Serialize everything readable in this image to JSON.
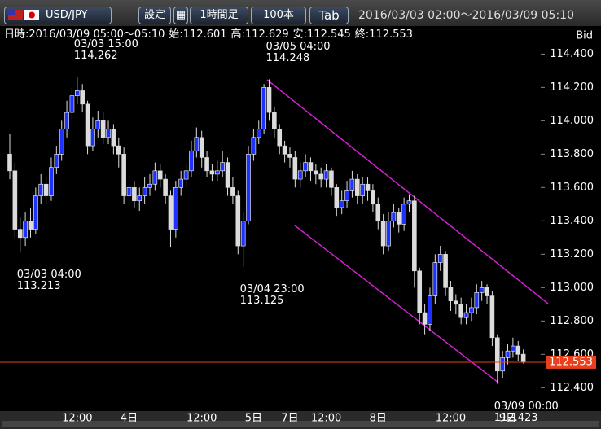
{
  "header": {
    "pair": "USD/JPY",
    "buttons": [
      "設定",
      "1時間足",
      "100本",
      "Tab"
    ],
    "range": "2016/03/03 02:00～2016/03/09 05:10"
  },
  "info": [
    "日時:2016/03/09 05:00～05:10",
    "始:112.601",
    "高:112.629",
    "安:112.545",
    "終:112.553"
  ],
  "price_side": "Bid",
  "chart_data": {
    "type": "candlestick",
    "up_color": "#1e32ff",
    "down_color": "#dcdcdc",
    "last_price_color": "#e8401c",
    "open": [
      113.8,
      113.7,
      113.35,
      113.3,
      113.4,
      113.35,
      113.55,
      113.62,
      113.55,
      113.72,
      113.8,
      113.95,
      114.05,
      114.15,
      114.18,
      114.1,
      113.85,
      113.95,
      114.0,
      113.9,
      113.95,
      113.85,
      113.8,
      113.55,
      113.6,
      113.52,
      113.55,
      113.6,
      113.62,
      113.7,
      113.65,
      113.55,
      113.35,
      113.6,
      113.65,
      113.7,
      113.82,
      113.9,
      113.78,
      113.7,
      113.68,
      113.7,
      113.75,
      113.6,
      113.55,
      113.25,
      113.4,
      113.8,
      113.9,
      113.95,
      114.2,
      114.05,
      113.95,
      113.85,
      113.8,
      113.78,
      113.65,
      113.7,
      113.75,
      113.7,
      113.68,
      113.65,
      113.7,
      113.6,
      113.48,
      113.52,
      113.58,
      113.65,
      113.55,
      113.62,
      113.58,
      113.5,
      113.4,
      113.25,
      113.4,
      113.45,
      113.38,
      113.5,
      113.52,
      113.1,
      112.85,
      112.78,
      112.95,
      113.15,
      113.2,
      113.0,
      112.92,
      112.9,
      112.82,
      112.85,
      112.88,
      112.97,
      113.0,
      112.95,
      112.7,
      112.5,
      112.58,
      112.62,
      112.65,
      112.601
    ],
    "high": [
      113.92,
      113.75,
      113.42,
      113.45,
      113.48,
      113.6,
      113.68,
      113.66,
      113.78,
      113.85,
      114.0,
      114.12,
      114.2,
      114.262,
      114.22,
      114.12,
      114.02,
      114.06,
      114.05,
      114.0,
      113.98,
      113.9,
      113.84,
      113.66,
      113.64,
      113.6,
      113.66,
      113.68,
      113.75,
      113.74,
      113.68,
      113.58,
      113.64,
      113.7,
      113.75,
      113.88,
      113.96,
      113.94,
      113.82,
      113.74,
      113.76,
      113.82,
      113.78,
      113.66,
      113.58,
      113.45,
      113.85,
      113.95,
      114.0,
      114.22,
      114.248,
      114.08,
      113.98,
      113.88,
      113.84,
      113.82,
      113.75,
      113.8,
      113.78,
      113.74,
      113.72,
      113.74,
      113.72,
      113.62,
      113.58,
      113.64,
      113.7,
      113.68,
      113.66,
      113.66,
      113.62,
      113.54,
      113.44,
      113.45,
      113.5,
      113.48,
      113.54,
      113.56,
      113.55,
      113.12,
      112.9,
      113.0,
      113.2,
      113.25,
      113.22,
      113.04,
      112.96,
      112.94,
      112.9,
      112.94,
      113.02,
      113.04,
      113.02,
      112.98,
      112.72,
      112.62,
      112.66,
      112.7,
      112.68,
      112.629
    ],
    "low": [
      113.65,
      113.3,
      113.213,
      113.25,
      113.3,
      113.32,
      113.5,
      113.5,
      113.52,
      113.68,
      113.76,
      113.9,
      114.0,
      114.1,
      114.05,
      113.8,
      113.82,
      113.9,
      113.86,
      113.86,
      113.8,
      113.72,
      113.5,
      113.3,
      113.48,
      113.46,
      113.5,
      113.55,
      113.58,
      113.6,
      113.5,
      113.24,
      113.3,
      113.55,
      113.6,
      113.66,
      113.78,
      113.72,
      113.66,
      113.64,
      113.64,
      113.66,
      113.55,
      113.5,
      113.2,
      113.125,
      113.38,
      113.76,
      113.86,
      113.92,
      114.0,
      113.9,
      113.8,
      113.75,
      113.72,
      113.6,
      113.6,
      113.66,
      113.64,
      113.62,
      113.6,
      113.6,
      113.55,
      113.43,
      113.44,
      113.48,
      113.54,
      113.5,
      113.5,
      113.52,
      113.45,
      113.35,
      113.2,
      113.22,
      113.36,
      113.33,
      113.34,
      113.45,
      113.0,
      112.78,
      112.72,
      112.74,
      112.9,
      113.1,
      112.95,
      112.86,
      112.84,
      112.78,
      112.78,
      112.8,
      112.84,
      112.92,
      112.9,
      112.65,
      112.423,
      112.46,
      112.54,
      112.58,
      112.56,
      112.545
    ],
    "close": [
      113.7,
      113.35,
      113.3,
      113.4,
      113.35,
      113.55,
      113.62,
      113.55,
      113.72,
      113.8,
      113.95,
      114.05,
      114.15,
      114.18,
      114.1,
      113.85,
      113.95,
      114.0,
      113.9,
      113.95,
      113.85,
      113.8,
      113.55,
      113.6,
      113.52,
      113.55,
      113.6,
      113.62,
      113.7,
      113.65,
      113.55,
      113.35,
      113.6,
      113.65,
      113.7,
      113.82,
      113.9,
      113.78,
      113.7,
      113.68,
      113.7,
      113.75,
      113.6,
      113.55,
      113.25,
      113.4,
      113.8,
      113.9,
      113.95,
      114.2,
      114.05,
      113.95,
      113.85,
      113.8,
      113.78,
      113.65,
      113.7,
      113.75,
      113.7,
      113.68,
      113.65,
      113.7,
      113.6,
      113.48,
      113.52,
      113.58,
      113.65,
      113.55,
      113.62,
      113.58,
      113.5,
      113.4,
      113.25,
      113.4,
      113.45,
      113.38,
      113.5,
      113.52,
      113.1,
      112.85,
      112.78,
      112.95,
      113.15,
      113.2,
      113.0,
      112.92,
      112.9,
      112.82,
      112.85,
      112.88,
      112.97,
      113.0,
      112.95,
      112.7,
      112.5,
      112.58,
      112.62,
      112.65,
      112.6,
      112.553
    ],
    "ylim": [
      112.26,
      114.47
    ],
    "yticks": [
      {
        "value": 112.4,
        "label": "112.400"
      },
      {
        "value": 112.6,
        "label": "112.600"
      },
      {
        "value": 112.8,
        "label": "112.800"
      },
      {
        "value": 113.0,
        "label": "113.000"
      },
      {
        "value": 113.2,
        "label": "113.200"
      },
      {
        "value": 113.4,
        "label": "113.400"
      },
      {
        "value": 113.6,
        "label": "113.600"
      },
      {
        "value": 113.8,
        "label": "113.800"
      },
      {
        "value": 114.0,
        "label": "114.000"
      },
      {
        "value": 114.2,
        "label": "114.200"
      },
      {
        "value": 114.4,
        "label": "114.400"
      }
    ],
    "xticks": [
      {
        "value": 13,
        "label": "12:00"
      },
      {
        "value": 23,
        "label": "4日"
      },
      {
        "value": 37,
        "label": "12:00"
      },
      {
        "value": 47,
        "label": "5日"
      },
      {
        "value": 54,
        "label": "7日"
      },
      {
        "value": 61,
        "label": "12:00"
      },
      {
        "value": 71,
        "label": "8日"
      },
      {
        "value": 85,
        "label": "12:00"
      },
      {
        "value": 96,
        "label": "9日"
      }
    ],
    "annotations": [
      {
        "label": "03/03 15:00",
        "value": 114.262
      },
      {
        "label": "03/03 04:00",
        "value": 113.213
      },
      {
        "label": "03/05 04:00",
        "value": 114.248
      },
      {
        "label": "03/04 23:00",
        "value": 113.125
      },
      {
        "label": "03/09 00:00",
        "value": 112.423
      }
    ]
  }
}
